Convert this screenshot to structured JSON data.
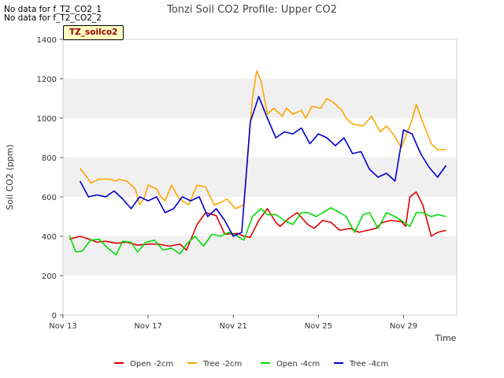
{
  "chart_data": {
    "type": "line",
    "title": "Tonzi Soil CO2 Profile: Upper CO2",
    "xlabel": "Time",
    "ylabel": "Soil CO2 (ppm)",
    "ylim": [
      0,
      1400
    ],
    "xlim": [
      13,
      31.5
    ],
    "yticks": [
      0,
      200,
      400,
      600,
      800,
      1000,
      1200,
      1400
    ],
    "xticks": [
      {
        "pos": 13,
        "label": "Nov 13"
      },
      {
        "pos": 17,
        "label": "Nov 17"
      },
      {
        "pos": 21,
        "label": "Nov 21"
      },
      {
        "pos": 25,
        "label": "Nov 25"
      },
      {
        "pos": 29,
        "label": "Nov 29"
      }
    ],
    "grid": "horizontal alternating bands",
    "legend_position": "bottom",
    "notes": [
      "No data for f_T2_CO2_1",
      "No data for f_T2_CO2_2"
    ],
    "site_label": "TZ_soilco2",
    "series": [
      {
        "name": "Open -2cm",
        "color": "#dd0000",
        "x": [
          13.3,
          13.8,
          14.1,
          14.6,
          15.0,
          15.5,
          16.0,
          16.5,
          17.0,
          17.5,
          18.0,
          18.5,
          18.8,
          19.3,
          19.7,
          20.2,
          20.6,
          21.2,
          21.5,
          21.8,
          22.2,
          22.6,
          23.0,
          23.2,
          23.6,
          24.0,
          24.5,
          24.8,
          25.2,
          25.6,
          26.0,
          26.5,
          26.9,
          27.3,
          27.7,
          28.0,
          28.4,
          28.9,
          29.1,
          29.3,
          29.6,
          29.9,
          30.3,
          30.6,
          31.0
        ],
        "y": [
          385,
          400,
          390,
          370,
          375,
          365,
          370,
          355,
          360,
          360,
          350,
          360,
          330,
          460,
          520,
          505,
          410,
          415,
          400,
          395,
          480,
          540,
          470,
          450,
          490,
          520,
          460,
          440,
          480,
          470,
          430,
          440,
          420,
          430,
          440,
          470,
          480,
          475,
          450,
          600,
          625,
          560,
          400,
          420,
          430
        ]
      },
      {
        "name": "Tree -2cm",
        "color": "#ffa500",
        "x": [
          13.8,
          14.2,
          14.3,
          14.7,
          15.2,
          15.5,
          15.6,
          16.0,
          16.4,
          16.6,
          16.8,
          17.0,
          17.4,
          17.6,
          17.8,
          18.1,
          18.4,
          18.6,
          18.9,
          19.3,
          19.7,
          20.1,
          20.4,
          20.7,
          21.1,
          21.5,
          21.9,
          22.1,
          22.3,
          22.6,
          22.9,
          23.3,
          23.5,
          23.8,
          24.2,
          24.4,
          24.7,
          25.1,
          25.4,
          25.7,
          26.1,
          26.3,
          26.6,
          27.1,
          27.5,
          27.9,
          28.2,
          28.5,
          28.9,
          29.4,
          29.6,
          29.9,
          30.3,
          30.6,
          31.0
        ],
        "y": [
          745,
          690,
          670,
          690,
          690,
          680,
          690,
          680,
          640,
          560,
          590,
          660,
          640,
          600,
          580,
          660,
          600,
          580,
          560,
          660,
          650,
          560,
          570,
          590,
          540,
          560,
          1100,
          1240,
          1190,
          1020,
          1050,
          1010,
          1050,
          1020,
          1040,
          1000,
          1060,
          1050,
          1100,
          1080,
          1040,
          1000,
          970,
          960,
          1010,
          930,
          960,
          920,
          850,
          990,
          1070,
          980,
          870,
          840,
          840
        ]
      },
      {
        "name": "Open -4cm",
        "color": "#00dd00",
        "x": [
          13.3,
          13.6,
          13.9,
          14.3,
          14.7,
          15.1,
          15.5,
          15.8,
          16.2,
          16.5,
          16.9,
          17.3,
          17.7,
          18.1,
          18.5,
          18.8,
          19.2,
          19.6,
          20.0,
          20.4,
          20.8,
          21.2,
          21.5,
          21.9,
          22.3,
          22.6,
          23.0,
          23.4,
          23.8,
          24.2,
          24.5,
          24.9,
          25.2,
          25.6,
          26.0,
          26.3,
          26.7,
          27.1,
          27.4,
          27.8,
          28.2,
          28.5,
          28.9,
          29.3,
          29.6,
          29.9,
          30.3,
          30.6,
          31.0
        ],
        "y": [
          405,
          320,
          325,
          380,
          385,
          340,
          305,
          375,
          370,
          320,
          370,
          380,
          330,
          340,
          310,
          360,
          400,
          350,
          410,
          400,
          420,
          400,
          380,
          500,
          540,
          510,
          510,
          480,
          460,
          520,
          520,
          500,
          520,
          545,
          520,
          500,
          420,
          510,
          520,
          440,
          520,
          505,
          480,
          450,
          520,
          520,
          500,
          510,
          500
        ]
      },
      {
        "name": "Tree -4cm",
        "color": "#0000cc",
        "x": [
          13.8,
          14.2,
          14.6,
          15.0,
          15.4,
          15.8,
          16.2,
          16.6,
          17.0,
          17.4,
          17.8,
          18.2,
          18.6,
          19.0,
          19.4,
          19.8,
          20.2,
          20.6,
          21.0,
          21.4,
          21.8,
          22.2,
          22.6,
          23.0,
          23.4,
          23.8,
          24.2,
          24.6,
          25.0,
          25.4,
          25.8,
          26.2,
          26.6,
          27.0,
          27.4,
          27.8,
          28.2,
          28.6,
          29.0,
          29.4,
          29.8,
          30.2,
          30.6,
          31.0
        ],
        "y": [
          680,
          600,
          610,
          600,
          630,
          590,
          540,
          600,
          580,
          600,
          520,
          540,
          600,
          580,
          600,
          500,
          540,
          480,
          400,
          420,
          980,
          1110,
          1000,
          900,
          930,
          920,
          950,
          870,
          920,
          900,
          860,
          900,
          820,
          830,
          740,
          700,
          720,
          680,
          940,
          920,
          820,
          750,
          700,
          760
        ]
      }
    ]
  }
}
